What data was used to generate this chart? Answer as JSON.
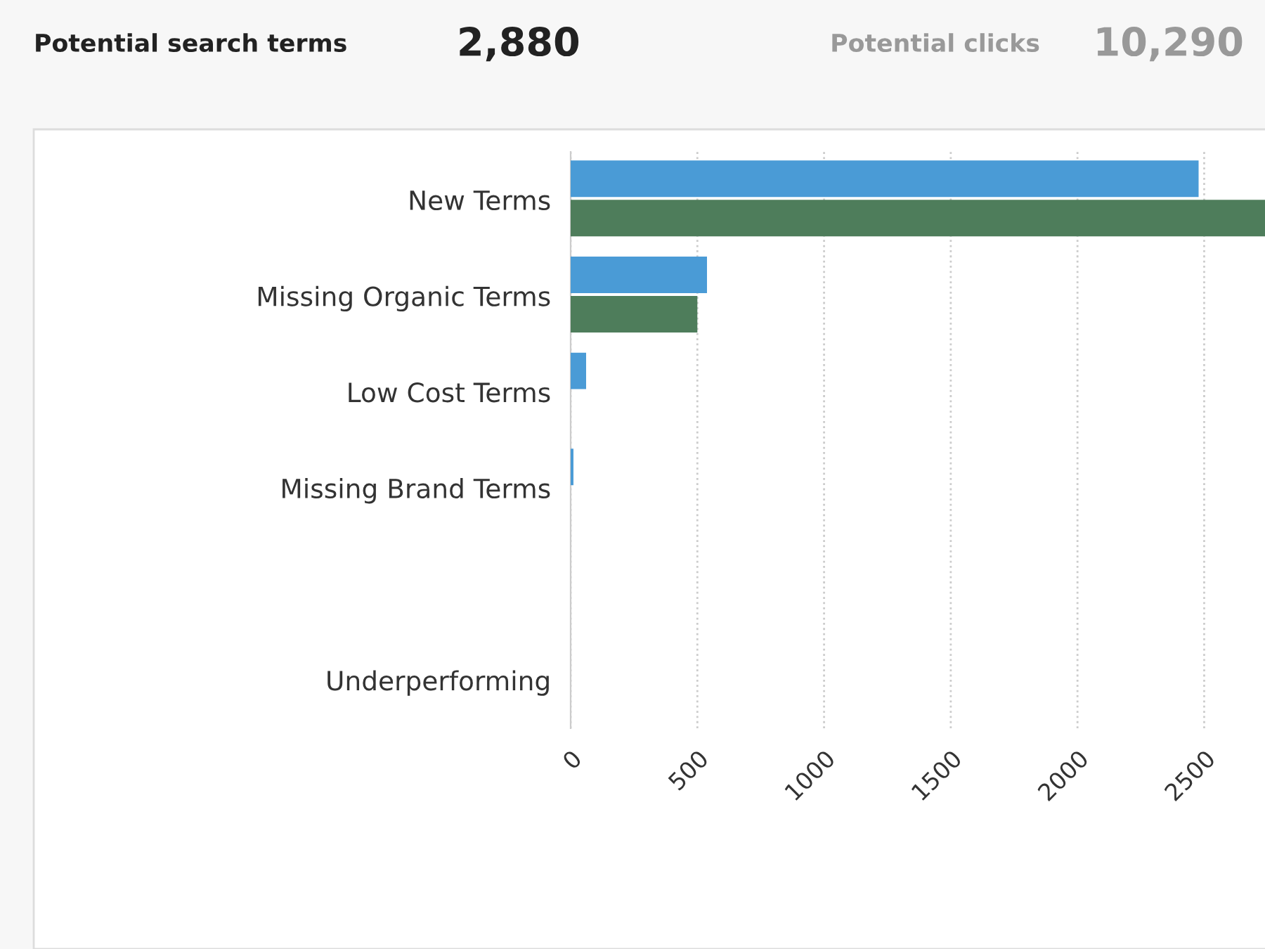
{
  "chart_data": {
    "type": "bar",
    "orientation": "horizontal",
    "title": "Potential search terms",
    "annotations": [
      "2,880",
      "Potential clicks",
      "10,290"
    ],
    "categories": [
      "New Terms",
      "Missing Organic Terms",
      "Low Cost Terms",
      "Missing Brand Terms",
      null,
      "Underperforming"
    ],
    "series": [
      {
        "color": "#4a9bd6",
        "values": [
          2478,
          538,
          61,
          11,
          0,
          0
        ]
      },
      {
        "color": "#4e7d5b",
        "values": [
          2740,
          500,
          0,
          0,
          0,
          0
        ]
      }
    ],
    "xlim": [
      0,
      2740
    ],
    "xticks": [
      0,
      500,
      1000,
      1500,
      2000,
      2500
    ],
    "grid": "x",
    "legend": false
  }
}
